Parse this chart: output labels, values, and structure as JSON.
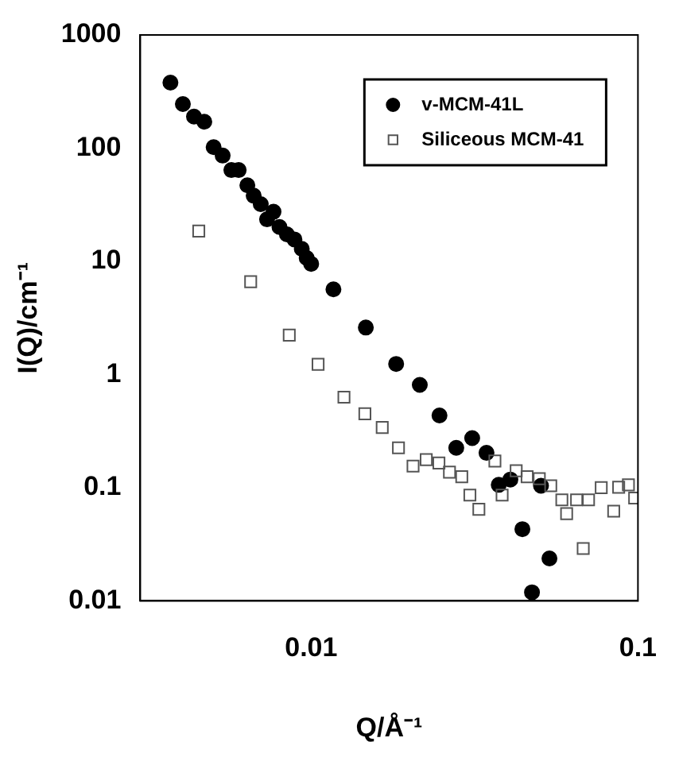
{
  "chart_data": {
    "type": "scatter",
    "xlabel": "Q/Å⁻¹",
    "ylabel": "I(Q)/cm⁻¹",
    "log": "xy",
    "grid": false,
    "legend": "top right",
    "xlim": [
      0.003,
      0.1
    ],
    "xticks": [
      0.01,
      0.1
    ],
    "ylim": [
      0.01,
      1000
    ],
    "yticks": [
      0.01,
      0.1,
      1,
      10,
      100,
      1000
    ],
    "series": [
      {
        "name": "v-MCM-41L",
        "color": "#000000",
        "marker": "circle",
        "x": [
          0.00371,
          0.00405,
          0.00438,
          0.00471,
          0.00503,
          0.00536,
          0.0057,
          0.006,
          0.00638,
          0.00667,
          0.00701,
          0.00733,
          0.00767,
          0.008,
          0.00843,
          0.00889,
          0.00936,
          0.00969,
          0.01,
          0.0117,
          0.0147,
          0.0182,
          0.0215,
          0.0247,
          0.0278,
          0.0311,
          0.0344,
          0.0375,
          0.0407,
          0.0443,
          0.0474,
          0.0505,
          0.0536
        ],
        "values": [
          379,
          245,
          190,
          171,
          102,
          86,
          64,
          64,
          47,
          38,
          32,
          23.5,
          27.4,
          20.1,
          17.3,
          15.6,
          12.9,
          10.7,
          9.5,
          5.65,
          2.6,
          1.24,
          0.81,
          0.435,
          0.225,
          0.274,
          0.203,
          0.106,
          0.118,
          0.043,
          0.0119,
          0.104,
          0.0237
        ]
      },
      {
        "name": "Siliceous MCM-41",
        "color": "#555555",
        "marker": "square",
        "x": [
          0.00453,
          0.00653,
          0.00857,
          0.0105,
          0.0126,
          0.0146,
          0.0165,
          0.0185,
          0.0205,
          0.0225,
          0.0246,
          0.0265,
          0.0289,
          0.0306,
          0.0326,
          0.0365,
          0.0384,
          0.0424,
          0.0458,
          0.0499,
          0.0541,
          0.0585,
          0.0605,
          0.0649,
          0.068,
          0.0706,
          0.0772,
          0.0843,
          0.0873,
          0.0935,
          0.0977
        ],
        "values": [
          18.5,
          6.6,
          2.23,
          1.23,
          0.63,
          0.45,
          0.34,
          0.225,
          0.155,
          0.177,
          0.165,
          0.137,
          0.125,
          0.086,
          0.0645,
          0.172,
          0.086,
          0.141,
          0.125,
          0.12,
          0.104,
          0.078,
          0.059,
          0.078,
          0.029,
          0.078,
          0.1,
          0.062,
          0.101,
          0.106,
          0.081
        ]
      }
    ]
  }
}
